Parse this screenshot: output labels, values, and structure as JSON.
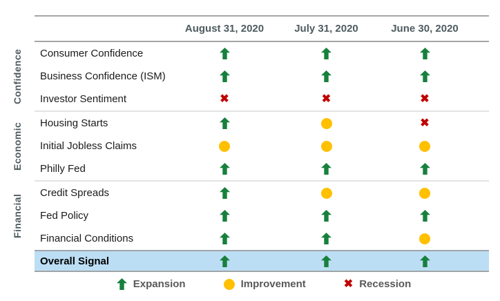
{
  "chart_data": {
    "type": "table",
    "columns": [
      "August 31, 2020",
      "July 31, 2020",
      "June 30, 2020"
    ],
    "groups": [
      {
        "label": "Confidence",
        "rows": [
          {
            "label": "Consumer Confidence",
            "signals": [
              "expansion",
              "expansion",
              "expansion"
            ]
          },
          {
            "label": "Business Confidence (ISM)",
            "signals": [
              "expansion",
              "expansion",
              "expansion"
            ]
          },
          {
            "label": "Investor Sentiment",
            "signals": [
              "recession",
              "recession",
              "recession"
            ]
          }
        ]
      },
      {
        "label": "Economic",
        "rows": [
          {
            "label": "Housing Starts",
            "signals": [
              "expansion",
              "improvement",
              "recession"
            ]
          },
          {
            "label": "Initial Jobless Claims",
            "signals": [
              "improvement",
              "improvement",
              "improvement"
            ]
          },
          {
            "label": "Philly Fed",
            "signals": [
              "expansion",
              "expansion",
              "expansion"
            ]
          }
        ]
      },
      {
        "label": "Financial",
        "rows": [
          {
            "label": "Credit Spreads",
            "signals": [
              "expansion",
              "improvement",
              "improvement"
            ]
          },
          {
            "label": "Fed Policy",
            "signals": [
              "expansion",
              "expansion",
              "expansion"
            ]
          },
          {
            "label": "Financial Conditions",
            "signals": [
              "expansion",
              "expansion",
              "improvement"
            ]
          }
        ]
      }
    ],
    "overall": {
      "label": "Overall Signal",
      "signals": [
        "expansion",
        "expansion",
        "expansion"
      ]
    },
    "legend": [
      {
        "icon": "expansion",
        "label": "Expansion"
      },
      {
        "icon": "improvement",
        "label": "Improvement"
      },
      {
        "icon": "recession",
        "label": "Recession"
      }
    ]
  },
  "colors": {
    "expansion": "#17803D",
    "improvement": "#FFC000",
    "recession": "#C00000",
    "overall_row_bg": "#BCDEF4",
    "header_text": "#4E5B5F",
    "strong_border": "#A6A6A6",
    "light_border": "#E3E3E3",
    "legend_text": "#595959"
  }
}
